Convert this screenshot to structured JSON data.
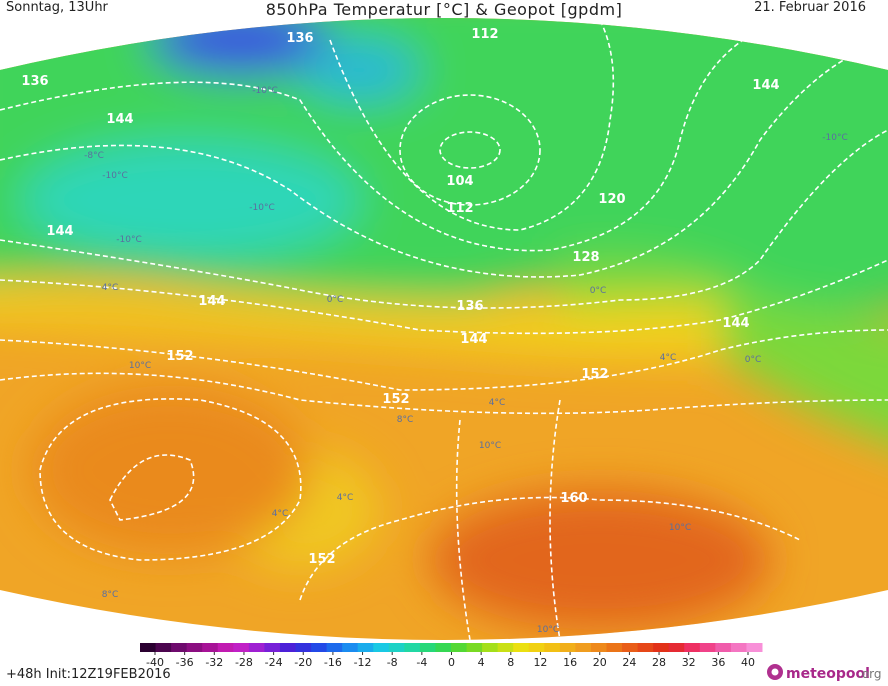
{
  "header": {
    "left": "Sonntag, 13Uhr",
    "title": "850hPa Temperatur [°C] & Geopot [gpdm]",
    "date": "21. Februar 2016"
  },
  "map": {
    "geopotential_labels": [
      136,
      112,
      136,
      144,
      144,
      104,
      112,
      120,
      144,
      128,
      144,
      136,
      144,
      144,
      152,
      152,
      152,
      160,
      152
    ],
    "temperature_labels": [
      "-10°C",
      "-10°C",
      "-10°C",
      "-10°C",
      "-10°C",
      "-8°C",
      "0°C",
      "0°C",
      "0°C",
      "4°C",
      "4°C",
      "4°C",
      "4°C",
      "4°C",
      "8°C",
      "10°C",
      "10°C",
      "10°C",
      "10°C",
      "8°C"
    ]
  },
  "colorbar": {
    "ticks": [
      -40,
      -36,
      -32,
      -28,
      -24,
      -20,
      -16,
      -12,
      -8,
      -4,
      0,
      4,
      8,
      12,
      16,
      20,
      24,
      28,
      32,
      36,
      40
    ]
  },
  "footer": {
    "run": "+48h Init:12Z19FEB2016",
    "logo_name": "meteopool",
    "logo_tld": ".org"
  }
}
